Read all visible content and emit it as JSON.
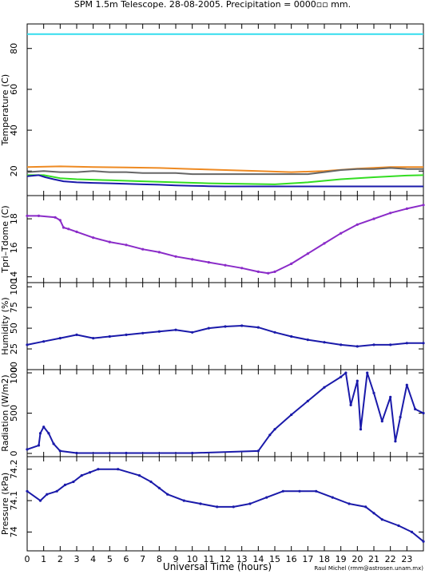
{
  "page": {
    "title": "SPM 1.5m Telescope. 28-08-2005. Precipitation = 0000▫▫ mm.",
    "credit": "Raul Michel (rmm@astrosen.unam.mx)",
    "xlabel": "Universal Time (hours)"
  },
  "colors": {
    "cyan": "#33ddee",
    "orange": "#ee8a22",
    "gray": "#666666",
    "green": "#33dd22",
    "blue": "#1a1aaa",
    "purple": "#8a2bc8",
    "ink": "#000000"
  },
  "chart_data": [
    {
      "type": "line",
      "ylabel": "Temperature (C)",
      "xlim": [
        0,
        24
      ],
      "ylim": [
        8,
        92
      ],
      "yticks": [
        20,
        40,
        60,
        80
      ],
      "series": [
        {
          "color": "cyan",
          "x": [
            0,
            24
          ],
          "y": [
            87,
            87
          ]
        },
        {
          "color": "orange",
          "x": [
            0,
            2,
            4,
            6,
            8,
            10,
            12,
            14,
            16,
            18,
            20,
            22,
            24
          ],
          "y": [
            22,
            22.3,
            22,
            21.8,
            21.5,
            21,
            20.5,
            20,
            19.5,
            20,
            21.2,
            22,
            22
          ]
        },
        {
          "color": "gray",
          "x": [
            0,
            1,
            2,
            3,
            4,
            5,
            6,
            7,
            8,
            9,
            10,
            11,
            12,
            13,
            14,
            15,
            16,
            17,
            18,
            19,
            20,
            21,
            22,
            23,
            24
          ],
          "y": [
            19.5,
            20,
            19.5,
            19.5,
            20,
            19.5,
            19.5,
            19,
            19,
            19,
            18.5,
            18.5,
            18.5,
            18.5,
            18.5,
            18.5,
            18.5,
            18.5,
            19.5,
            20.5,
            21,
            21,
            21.5,
            21,
            21
          ]
        },
        {
          "color": "green",
          "x": [
            0,
            1,
            2,
            3,
            5,
            7,
            9,
            11,
            13,
            15,
            17,
            19,
            21,
            23,
            24
          ],
          "y": [
            18,
            18,
            16.5,
            16,
            15.5,
            15,
            14.5,
            14,
            13.8,
            13.5,
            14.5,
            16,
            17,
            17.8,
            18
          ]
        },
        {
          "color": "blue",
          "x": [
            0,
            0.7,
            1.1,
            1.6,
            2.2,
            3,
            4,
            5,
            6,
            7,
            8,
            9,
            10,
            11,
            12,
            14,
            16,
            18,
            20,
            22,
            24
          ],
          "y": [
            17.5,
            18,
            17,
            16,
            15,
            14.5,
            14.2,
            14,
            13.8,
            13.5,
            13.3,
            13,
            12.8,
            12.6,
            12.5,
            12.5,
            12.5,
            12.5,
            12.5,
            12.5,
            12.5
          ]
        }
      ]
    },
    {
      "type": "scatter",
      "ylabel": "Tpri–Tdome (C)",
      "xlim": [
        0,
        24
      ],
      "ylim": [
        13.6,
        19.6
      ],
      "yticks": [
        14,
        16,
        18
      ],
      "series": [
        {
          "color": "purple",
          "x": [
            0,
            0.7,
            1.7,
            2,
            2.2,
            2.5,
            3,
            4,
            5,
            6,
            7,
            8,
            9,
            10,
            11,
            12,
            13,
            14,
            14.6,
            15,
            16,
            17,
            18,
            19,
            20,
            21,
            22,
            23,
            24
          ],
          "y": [
            18.2,
            18.2,
            18.1,
            17.9,
            17.4,
            17.3,
            17.1,
            16.7,
            16.4,
            16.2,
            15.9,
            15.7,
            15.4,
            15.2,
            15.0,
            14.8,
            14.6,
            14.35,
            14.25,
            14.35,
            14.9,
            15.6,
            16.3,
            17.0,
            17.6,
            18.0,
            18.4,
            18.7,
            18.95
          ]
        }
      ]
    },
    {
      "type": "scatter",
      "ylabel": "Humidity (%)",
      "xlim": [
        0,
        24
      ],
      "ylim": [
        0,
        105
      ],
      "yticks": [
        0,
        25,
        50,
        75,
        100
      ],
      "series": [
        {
          "color": "blue",
          "x": [
            0,
            1,
            2,
            3,
            4,
            5,
            6,
            7,
            8,
            9,
            10,
            11,
            12,
            13,
            14,
            15,
            16,
            17,
            18,
            19,
            20,
            21,
            22,
            23,
            24
          ],
          "y": [
            30,
            34,
            38,
            42,
            38,
            40,
            42,
            44,
            46,
            48,
            45,
            50,
            52,
            53,
            51,
            45,
            40,
            36,
            33,
            30,
            28,
            30,
            30,
            32,
            32
          ]
        }
      ]
    },
    {
      "type": "scatter",
      "ylabel": "Radiation (W/m2)",
      "xlim": [
        0,
        24
      ],
      "ylim": [
        -40,
        1040
      ],
      "yticks": [
        0,
        500,
        1000
      ],
      "series": [
        {
          "color": "blue",
          "x": [
            0,
            0.7,
            0.8,
            1,
            1.3,
            1.6,
            2,
            3,
            6,
            10,
            14,
            14.7,
            15,
            16,
            17,
            18,
            19,
            19.3,
            19.6,
            20,
            20.2,
            20.6,
            21,
            21.5,
            22,
            22.3,
            22.6,
            23,
            23.5,
            24
          ],
          "y": [
            50,
            100,
            250,
            330,
            250,
            120,
            30,
            5,
            5,
            5,
            30,
            230,
            300,
            480,
            650,
            820,
            950,
            1000,
            600,
            900,
            300,
            1000,
            750,
            400,
            700,
            150,
            450,
            850,
            550,
            500
          ]
        }
      ]
    },
    {
      "type": "scatter",
      "ylabel": "Pressure (kPa)",
      "xlim": [
        0,
        24
      ],
      "ylim": [
        73.94,
        74.24
      ],
      "yticks": [
        74,
        74.1,
        74.2
      ],
      "series": [
        {
          "color": "blue",
          "x": [
            0,
            0.8,
            1.2,
            1.8,
            2.3,
            2.8,
            3.3,
            3.8,
            4.3,
            5.5,
            6.8,
            7.5,
            8,
            8.5,
            9.5,
            10.5,
            11.5,
            12.5,
            13.5,
            14.5,
            15.5,
            16.5,
            17.5,
            18.5,
            19.5,
            20.5,
            21,
            21.5,
            22.5,
            23.3,
            24
          ],
          "y": [
            74.13,
            74.1,
            74.12,
            74.13,
            74.15,
            74.16,
            74.18,
            74.19,
            74.2,
            74.2,
            74.18,
            74.16,
            74.14,
            74.12,
            74.1,
            74.09,
            74.08,
            74.08,
            74.09,
            74.11,
            74.13,
            74.13,
            74.13,
            74.11,
            74.09,
            74.08,
            74.06,
            74.04,
            74.02,
            74.0,
            73.97
          ]
        }
      ]
    }
  ]
}
